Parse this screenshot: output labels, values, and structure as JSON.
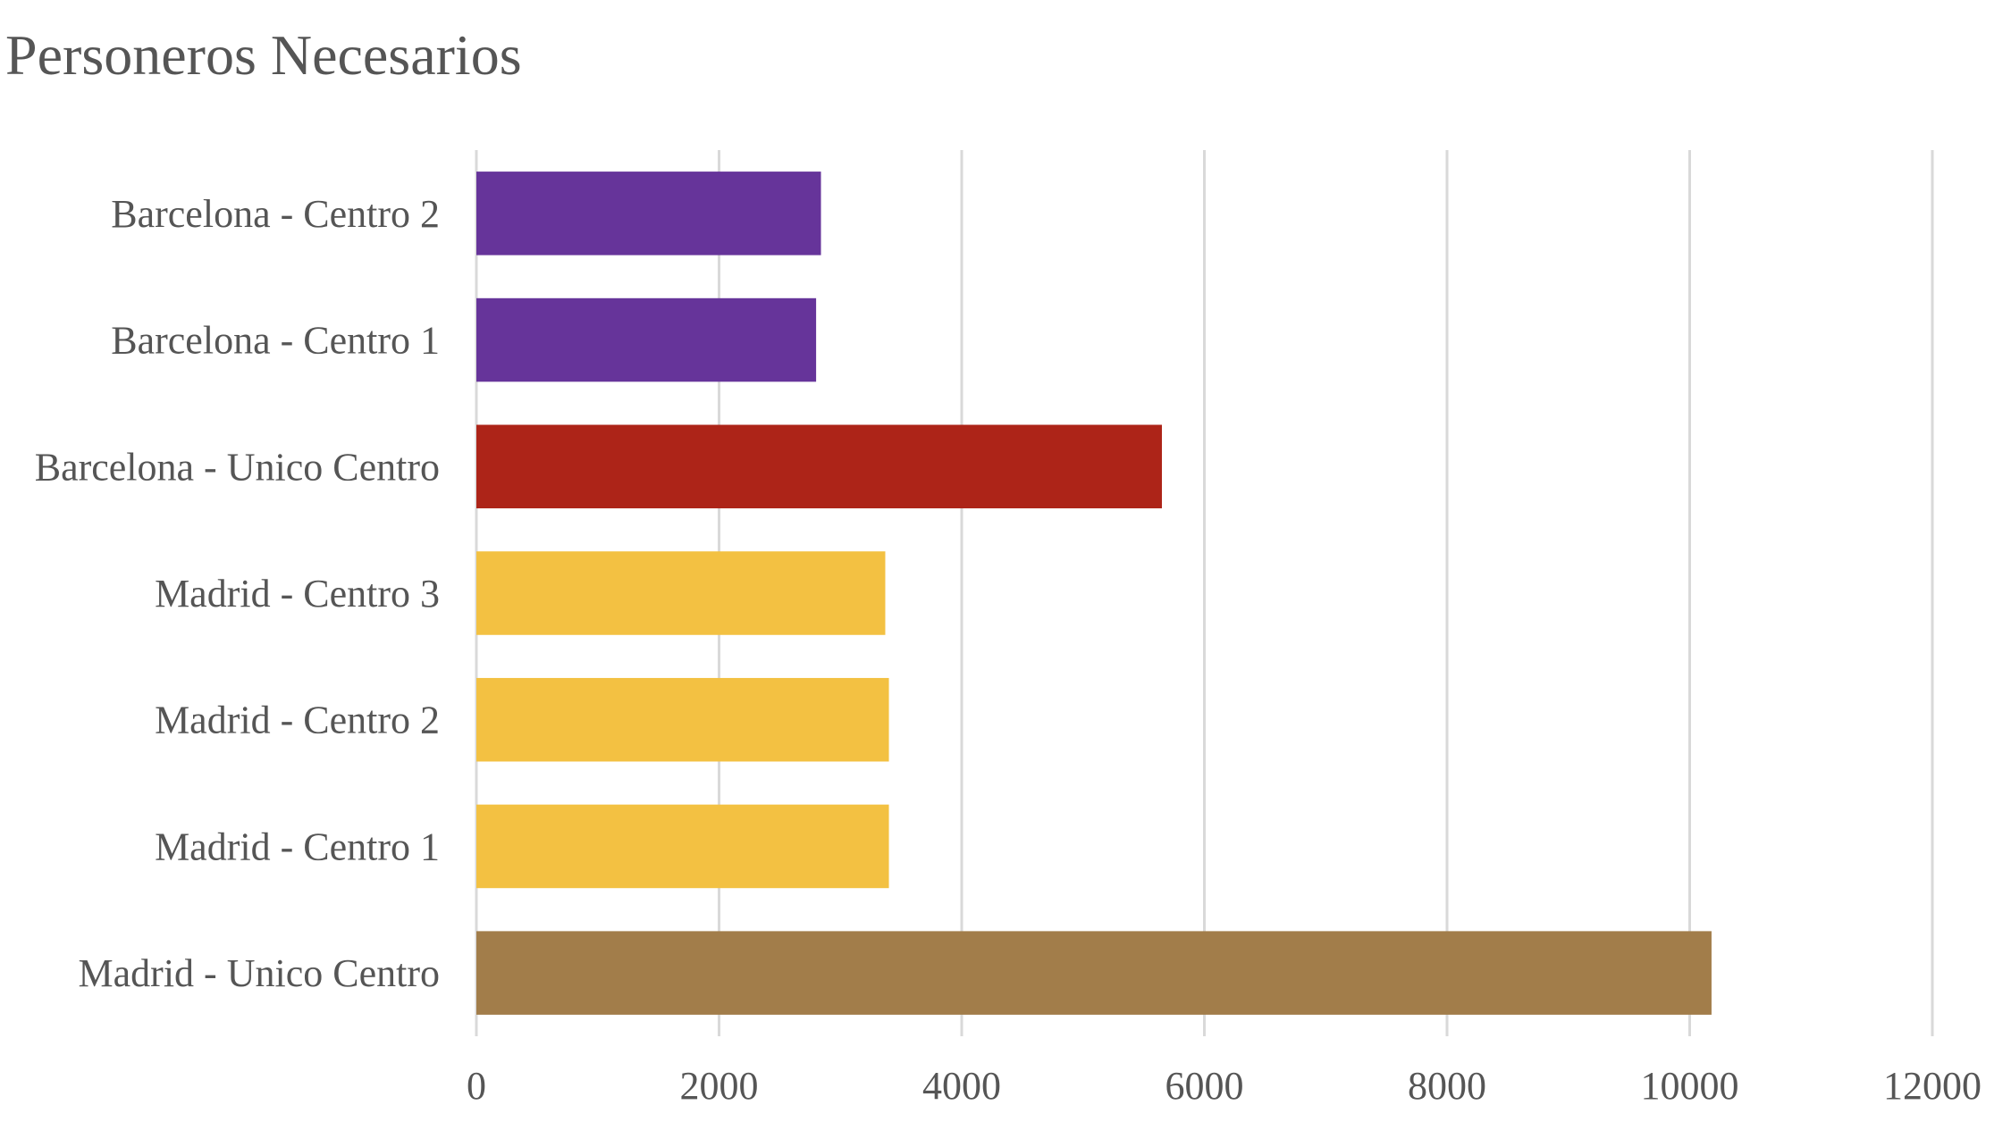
{
  "chart_data": {
    "type": "bar",
    "orientation": "horizontal",
    "title": "Personeros Necesarios",
    "xlabel": "",
    "ylabel": "",
    "categories": [
      "Barcelona - Centro 2",
      "Barcelona - Centro 1",
      "Barcelona - Unico Centro",
      "Madrid - Centro 3",
      "Madrid - Centro 2",
      "Madrid - Centro 1",
      "Madrid - Unico Centro"
    ],
    "values": [
      2840,
      2800,
      5650,
      3370,
      3400,
      3400,
      10180
    ],
    "bar_colors": [
      "#66349a",
      "#66349a",
      "#ad2418",
      "#f3c142",
      "#f3c142",
      "#f3c142",
      "#a27d4a"
    ],
    "xlim": [
      0,
      12000
    ],
    "xticks": [
      "0",
      "2000",
      "4000",
      "6000",
      "8000",
      "10000",
      "12000"
    ],
    "grid": "vertical",
    "legend": "none"
  }
}
